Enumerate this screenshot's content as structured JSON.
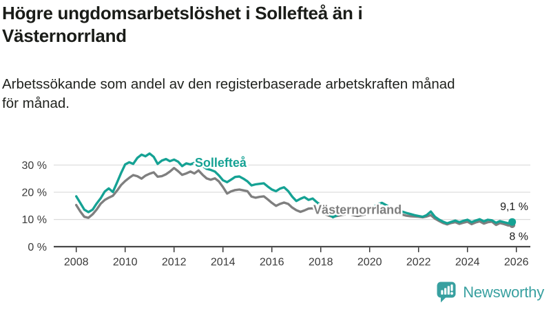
{
  "header": {
    "title_lines": [
      "Högre ungdomsarbetslöshet i Sollefteå än i",
      "Västernorrland"
    ],
    "subtitle_lines": [
      "Arbetssökande som andel av den registerbaserade arbetskraften månad",
      "för månad."
    ]
  },
  "chart_data": {
    "type": "line",
    "title": "Högre ungdomsarbetslöshet i Sollefteå än i Västernorrland",
    "subtitle": "Arbetssökande som andel av den registerbaserade arbetskraften månad för månad.",
    "unit": "%",
    "grid": true,
    "legend_position": "inline-labels",
    "xlim": [
      2007.1,
      2026.6
    ],
    "ylim": [
      0,
      36.5
    ],
    "x_ticks": [
      "2008",
      "2010",
      "2012",
      "2014",
      "2016",
      "2018",
      "2020",
      "2022",
      "2024",
      "2026"
    ],
    "y_ticks": [
      {
        "v": 0,
        "label": "0 %"
      },
      {
        "v": 10,
        "label": "10 %"
      },
      {
        "v": 20,
        "label": "20 %"
      },
      {
        "v": 30,
        "label": "30 %"
      }
    ],
    "series": [
      {
        "name": "Sollefteå",
        "color": "#15a294",
        "end_label": "9,1 %",
        "end_value": 9.1,
        "end_dot_r": 5.5,
        "label_anchor": {
          "x": 2012.85,
          "y": 29.3
        },
        "points": [
          [
            2008.0,
            18.5
          ],
          [
            2008.17,
            16.0
          ],
          [
            2008.33,
            13.6
          ],
          [
            2008.5,
            12.7
          ],
          [
            2008.67,
            13.6
          ],
          [
            2008.83,
            15.8
          ],
          [
            2009.0,
            17.8
          ],
          [
            2009.17,
            20.3
          ],
          [
            2009.33,
            21.4
          ],
          [
            2009.5,
            20.1
          ],
          [
            2009.67,
            23.6
          ],
          [
            2009.83,
            27.0
          ],
          [
            2010.0,
            30.2
          ],
          [
            2010.17,
            31.0
          ],
          [
            2010.33,
            30.4
          ],
          [
            2010.5,
            32.6
          ],
          [
            2010.67,
            33.8
          ],
          [
            2010.83,
            33.2
          ],
          [
            2011.0,
            34.2
          ],
          [
            2011.17,
            33.0
          ],
          [
            2011.33,
            30.4
          ],
          [
            2011.5,
            31.6
          ],
          [
            2011.67,
            32.2
          ],
          [
            2011.83,
            31.4
          ],
          [
            2012.0,
            32.0
          ],
          [
            2012.17,
            31.2
          ],
          [
            2012.33,
            29.6
          ],
          [
            2012.5,
            30.6
          ],
          [
            2012.67,
            30.2
          ],
          [
            2012.83,
            30.8
          ],
          [
            2013.0,
            30.2
          ],
          [
            2013.17,
            29.6
          ],
          [
            2013.33,
            28.6
          ],
          [
            2013.5,
            28.2
          ],
          [
            2013.67,
            27.6
          ],
          [
            2013.83,
            26.2
          ],
          [
            2014.0,
            24.4
          ],
          [
            2014.17,
            23.7
          ],
          [
            2014.33,
            24.6
          ],
          [
            2014.5,
            25.6
          ],
          [
            2014.67,
            25.8
          ],
          [
            2014.83,
            25.0
          ],
          [
            2015.0,
            24.0
          ],
          [
            2015.17,
            22.5
          ],
          [
            2015.33,
            22.9
          ],
          [
            2015.5,
            23.1
          ],
          [
            2015.67,
            23.3
          ],
          [
            2015.83,
            22.1
          ],
          [
            2016.0,
            21.0
          ],
          [
            2016.17,
            20.4
          ],
          [
            2016.33,
            21.3
          ],
          [
            2016.5,
            21.8
          ],
          [
            2016.67,
            20.4
          ],
          [
            2016.83,
            18.4
          ],
          [
            2017.0,
            16.8
          ],
          [
            2017.17,
            17.6
          ],
          [
            2017.33,
            18.2
          ],
          [
            2017.5,
            17.2
          ],
          [
            2017.67,
            17.7
          ],
          [
            2017.83,
            16.4
          ],
          [
            2018.0,
            15.2
          ],
          [
            2018.17,
            13.6
          ],
          [
            2018.33,
            12.1
          ],
          [
            2018.5,
            10.8
          ],
          [
            2018.67,
            11.6
          ],
          [
            2018.83,
            12.3
          ],
          [
            2019.0,
            12.9
          ],
          [
            2019.17,
            13.1
          ],
          [
            2019.33,
            12.5
          ],
          [
            2019.5,
            12.1
          ],
          [
            2019.67,
            12.5
          ],
          [
            2019.83,
            12.9
          ],
          [
            2020.0,
            13.3
          ],
          [
            2020.17,
            14.6
          ],
          [
            2020.33,
            15.6
          ],
          [
            2020.5,
            16.1
          ],
          [
            2020.67,
            15.3
          ],
          [
            2020.83,
            14.5
          ],
          [
            2021.0,
            14.0
          ],
          [
            2021.17,
            13.4
          ],
          [
            2021.33,
            12.9
          ],
          [
            2021.5,
            12.4
          ],
          [
            2021.67,
            12.0
          ],
          [
            2021.83,
            11.6
          ],
          [
            2022.0,
            11.3
          ],
          [
            2022.17,
            11.0
          ],
          [
            2022.33,
            11.6
          ],
          [
            2022.5,
            12.9
          ],
          [
            2022.67,
            11.0
          ],
          [
            2022.83,
            10.0
          ],
          [
            2023.0,
            9.2
          ],
          [
            2023.17,
            8.6
          ],
          [
            2023.33,
            9.1
          ],
          [
            2023.5,
            9.6
          ],
          [
            2023.67,
            9.0
          ],
          [
            2023.83,
            9.5
          ],
          [
            2024.0,
            9.9
          ],
          [
            2024.17,
            9.0
          ],
          [
            2024.33,
            9.6
          ],
          [
            2024.5,
            10.1
          ],
          [
            2024.67,
            9.3
          ],
          [
            2024.83,
            9.9
          ],
          [
            2025.0,
            9.7
          ],
          [
            2025.17,
            8.8
          ],
          [
            2025.33,
            9.4
          ],
          [
            2025.5,
            9.0
          ],
          [
            2025.67,
            8.6
          ],
          [
            2025.83,
            9.1
          ]
        ]
      },
      {
        "name": "Västernorrland",
        "color": "#7f7f7f",
        "end_label": "8 %",
        "end_value": 8.0,
        "end_dot_r": 4.5,
        "label_anchor": {
          "x": 2017.7,
          "y": 12.0
        },
        "points": [
          [
            2008.0,
            15.3
          ],
          [
            2008.17,
            12.9
          ],
          [
            2008.33,
            11.0
          ],
          [
            2008.5,
            10.6
          ],
          [
            2008.67,
            11.9
          ],
          [
            2008.83,
            13.6
          ],
          [
            2009.0,
            15.8
          ],
          [
            2009.17,
            17.2
          ],
          [
            2009.33,
            18.0
          ],
          [
            2009.5,
            18.7
          ],
          [
            2009.67,
            20.6
          ],
          [
            2009.83,
            22.6
          ],
          [
            2010.0,
            24.1
          ],
          [
            2010.17,
            25.3
          ],
          [
            2010.33,
            26.3
          ],
          [
            2010.5,
            25.9
          ],
          [
            2010.67,
            25.0
          ],
          [
            2010.83,
            26.1
          ],
          [
            2011.0,
            26.8
          ],
          [
            2011.17,
            27.3
          ],
          [
            2011.33,
            25.7
          ],
          [
            2011.5,
            25.9
          ],
          [
            2011.67,
            26.6
          ],
          [
            2011.83,
            27.6
          ],
          [
            2012.0,
            28.9
          ],
          [
            2012.17,
            27.7
          ],
          [
            2012.33,
            26.4
          ],
          [
            2012.5,
            26.9
          ],
          [
            2012.67,
            27.6
          ],
          [
            2012.83,
            26.9
          ],
          [
            2013.0,
            28.0
          ],
          [
            2013.17,
            26.4
          ],
          [
            2013.33,
            25.1
          ],
          [
            2013.5,
            24.6
          ],
          [
            2013.67,
            25.1
          ],
          [
            2013.83,
            24.0
          ],
          [
            2014.0,
            21.9
          ],
          [
            2014.17,
            19.5
          ],
          [
            2014.33,
            20.3
          ],
          [
            2014.5,
            20.8
          ],
          [
            2014.67,
            21.0
          ],
          [
            2014.83,
            20.7
          ],
          [
            2015.0,
            20.4
          ],
          [
            2015.17,
            18.4
          ],
          [
            2015.33,
            18.0
          ],
          [
            2015.5,
            18.3
          ],
          [
            2015.67,
            18.5
          ],
          [
            2015.83,
            17.4
          ],
          [
            2016.0,
            16.1
          ],
          [
            2016.17,
            15.0
          ],
          [
            2016.33,
            15.7
          ],
          [
            2016.5,
            16.2
          ],
          [
            2016.67,
            15.7
          ],
          [
            2016.83,
            14.4
          ],
          [
            2017.0,
            13.4
          ],
          [
            2017.17,
            12.8
          ],
          [
            2017.33,
            13.3
          ],
          [
            2017.5,
            14.0
          ],
          [
            2017.67,
            14.1
          ],
          [
            2017.83,
            13.4
          ],
          [
            2018.0,
            12.7
          ],
          [
            2018.17,
            12.0
          ],
          [
            2018.33,
            11.4
          ],
          [
            2018.5,
            11.0
          ],
          [
            2018.67,
            11.3
          ],
          [
            2018.83,
            11.6
          ],
          [
            2019.0,
            11.9
          ],
          [
            2019.17,
            12.0
          ],
          [
            2019.33,
            11.6
          ],
          [
            2019.5,
            11.3
          ],
          [
            2019.67,
            11.6
          ],
          [
            2019.83,
            11.9
          ],
          [
            2020.0,
            12.2
          ],
          [
            2020.17,
            13.2
          ],
          [
            2020.33,
            14.0
          ],
          [
            2020.5,
            14.2
          ],
          [
            2020.67,
            13.6
          ],
          [
            2020.83,
            13.0
          ],
          [
            2021.0,
            12.6
          ],
          [
            2021.17,
            12.2
          ],
          [
            2021.33,
            11.8
          ],
          [
            2021.5,
            11.4
          ],
          [
            2021.67,
            11.2
          ],
          [
            2021.83,
            11.1
          ],
          [
            2022.0,
            11.0
          ],
          [
            2022.17,
            10.8
          ],
          [
            2022.33,
            11.1
          ],
          [
            2022.5,
            11.6
          ],
          [
            2022.67,
            10.3
          ],
          [
            2022.83,
            9.5
          ],
          [
            2023.0,
            8.7
          ],
          [
            2023.17,
            8.2
          ],
          [
            2023.33,
            8.7
          ],
          [
            2023.5,
            9.0
          ],
          [
            2023.67,
            8.4
          ],
          [
            2023.83,
            8.8
          ],
          [
            2024.0,
            9.2
          ],
          [
            2024.17,
            8.3
          ],
          [
            2024.33,
            8.9
          ],
          [
            2024.5,
            9.3
          ],
          [
            2024.67,
            8.5
          ],
          [
            2024.83,
            9.0
          ],
          [
            2025.0,
            9.2
          ],
          [
            2025.17,
            8.0
          ],
          [
            2025.33,
            8.7
          ],
          [
            2025.5,
            8.3
          ],
          [
            2025.67,
            7.8
          ],
          [
            2025.83,
            8.0
          ]
        ]
      }
    ],
    "style": {
      "gridline_color": "#dadada",
      "axis_color": "#333333",
      "label_halo_color": "#ffffff"
    }
  },
  "footer": {
    "brand": "Newsworthy",
    "icon": "bar-chart-speech-bubble-icon",
    "brand_color": "#38a0a0"
  }
}
